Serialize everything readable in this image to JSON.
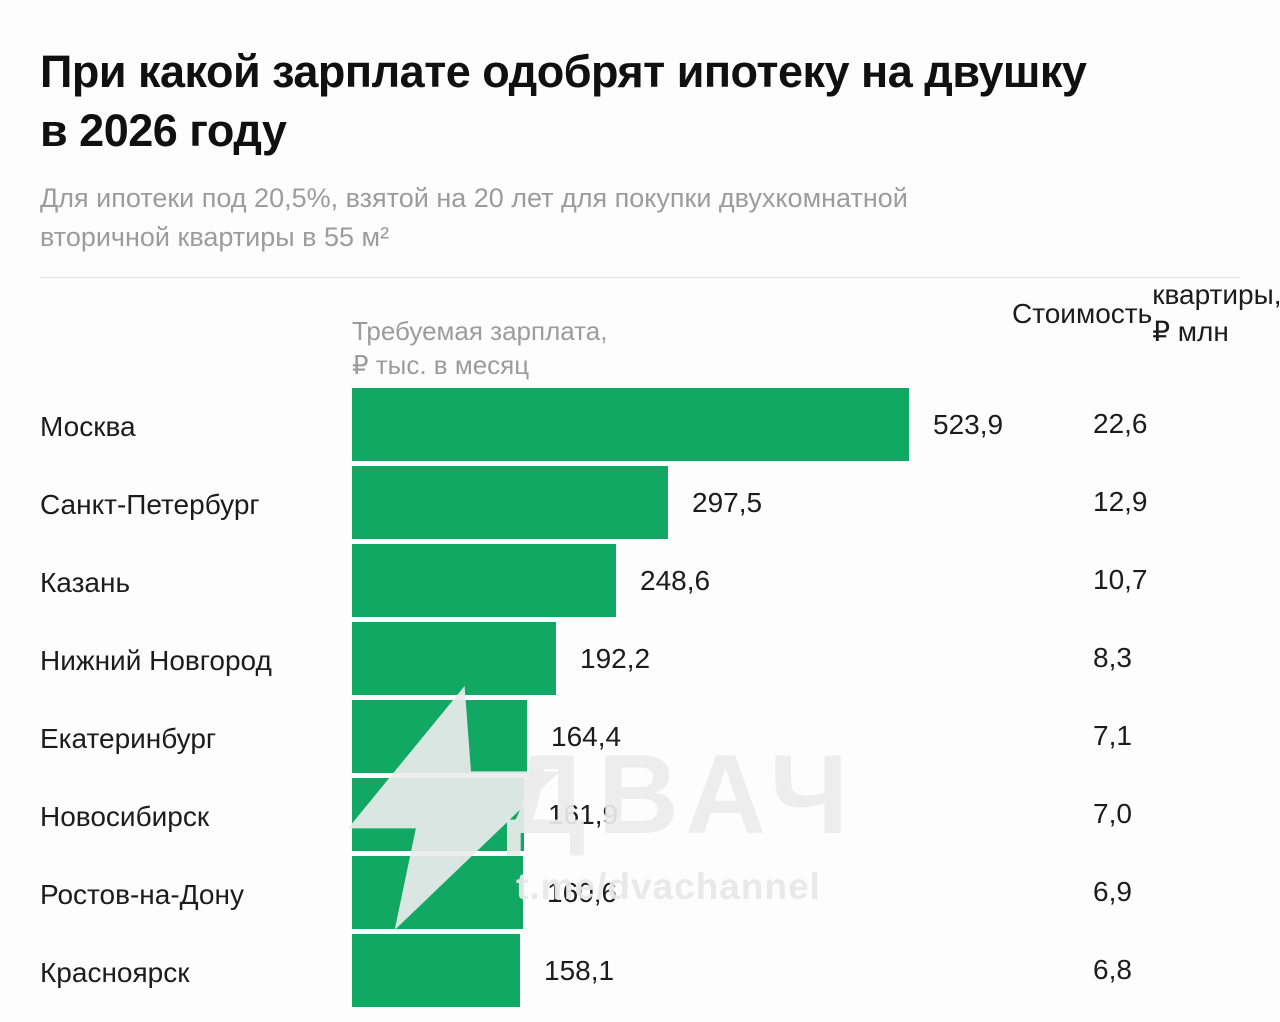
{
  "header": {
    "title_line1": "При какой зарплате одобрят ипотеку на двушку",
    "title_line2": "в 2026 году",
    "subtitle_line1": "Для ипотеки под 20,5%, взятой на 20 лет для покупки двухкомнатной",
    "subtitle_line2": "вторичной квартиры в 55 м²"
  },
  "columns": {
    "salary_header_line1": "Требуемая зарплата,",
    "salary_header_line2": "₽ тыс. в месяц",
    "price_header_line1": "Стоимость",
    "price_header_line2": "квартиры, ₽ млн"
  },
  "watermark": {
    "name": "ДВАЧ",
    "url": "t.me/dvachannel",
    "icon": "lightning-bolt-icon"
  },
  "colors": {
    "bar_green": "#10a862",
    "title_text": "#101010",
    "muted_text": "#9c9c9c",
    "body_text": "#1c1c1c",
    "background": "#fdfdfd",
    "divider": "#e2e2e2"
  },
  "chart_data": {
    "type": "bar",
    "orientation": "horizontal",
    "title": "При какой зарплате одобрят ипотеку на двушку в 2026 году",
    "subtitle": "Для ипотеки под 20,5%, взятой на 20 лет для покупки двухкомнатной вторичной квартиры в 55 м²",
    "categories": [
      "Москва",
      "Санкт-Петербург",
      "Казань",
      "Нижний Новгород",
      "Екатеринбург",
      "Новосибирск",
      "Ростов-на-Дону",
      "Красноярск"
    ],
    "series": [
      {
        "name": "Требуемая зарплата, ₽ тыс. в месяц",
        "values": [
          523.9,
          297.5,
          248.6,
          192.2,
          164.4,
          161.9,
          160.6,
          158.1
        ],
        "labels": [
          "523,9",
          "297,5",
          "248,6",
          "192,2",
          "164,4",
          "161,9",
          "160,6",
          "158,1"
        ]
      },
      {
        "name": "Стоимость квартиры, ₽ млн",
        "values": [
          22.6,
          12.9,
          10.7,
          8.3,
          7.1,
          7.0,
          6.9,
          6.8
        ],
        "labels": [
          "22,6",
          "12,9",
          "10,7",
          "8,3",
          "7,1",
          "7,0",
          "6,9",
          "6,8"
        ]
      }
    ],
    "xlim": [
      0,
      523.9
    ],
    "bar_color": "#10a862",
    "grid": false,
    "legend_position": "none"
  }
}
